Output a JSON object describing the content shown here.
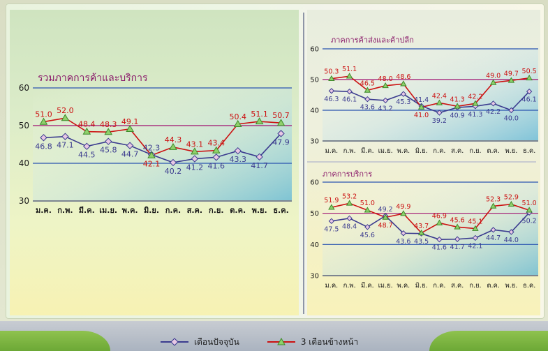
{
  "legend": {
    "current": "เดือนปัจจุบัน",
    "next3": "3 เดือนข้างหน้า"
  },
  "colors": {
    "current": "#3b3b8f",
    "next3": "#cc1111",
    "current_marker_fill": "#e8c8e4",
    "next3_marker_fill": "#8fd06b",
    "title": "#8a1a6a",
    "hline_50": "#a01070",
    "hline_blue": "#2a54b0"
  },
  "chart_data": [
    {
      "type": "line",
      "title": "รวมภาคการค้าและบริการ",
      "categories": [
        "ม.ค.",
        "ก.พ.",
        "มี.ค.",
        "เม.ย.",
        "พ.ค.",
        "มิ.ย.",
        "ก.ค.",
        "ส.ค.",
        "ก.ย.",
        "ต.ค.",
        "พ.ย.",
        "ธ.ค."
      ],
      "ylim": [
        30,
        60
      ],
      "yticks": [
        30,
        40,
        50,
        60
      ],
      "series": [
        {
          "name": "เดือนปัจจุบัน",
          "values": [
            46.8,
            47.1,
            44.5,
            45.8,
            44.7,
            42.3,
            40.2,
            41.2,
            41.6,
            43.3,
            41.7,
            47.9
          ]
        },
        {
          "name": "3 เดือนข้างหน้า",
          "values": [
            51.0,
            52.0,
            48.4,
            48.3,
            49.1,
            42.1,
            44.3,
            43.1,
            43.4,
            50.4,
            51.1,
            50.7
          ]
        }
      ]
    },
    {
      "type": "line",
      "title": "ภาคการค้าส่งและค้าปลีก",
      "categories": [
        "ม.ค.",
        "ก.พ.",
        "มี.ค.",
        "เม.ย.",
        "พ.ค.",
        "มิ.ย.",
        "ก.ค.",
        "ส.ค.",
        "ก.ย.",
        "ต.ค.",
        "พ.ย.",
        "ธ.ค."
      ],
      "ylim": [
        30,
        60
      ],
      "yticks": [
        30,
        40,
        50,
        60
      ],
      "series": [
        {
          "name": "เดือนปัจจุบัน",
          "values": [
            46.3,
            46.1,
            43.6,
            43.2,
            45.3,
            41.4,
            39.2,
            40.9,
            41.3,
            42.2,
            40.0,
            46.1
          ]
        },
        {
          "name": "3 เดือนข้างหน้า",
          "values": [
            50.3,
            51.1,
            46.5,
            48.0,
            48.6,
            41.0,
            42.4,
            41.3,
            42.2,
            49.0,
            49.7,
            50.5
          ]
        }
      ]
    },
    {
      "type": "line",
      "title": "ภาคการบริการ",
      "categories": [
        "ม.ค.",
        "ก.พ.",
        "มี.ค.",
        "เม.ย.",
        "พ.ค.",
        "มิ.ย.",
        "ก.ค.",
        "ส.ค.",
        "ก.ย.",
        "ต.ค.",
        "พ.ย.",
        "ธ.ค."
      ],
      "ylim": [
        30,
        60
      ],
      "yticks": [
        30,
        40,
        50,
        60
      ],
      "series": [
        {
          "name": "เดือนปัจจุบัน",
          "values": [
            47.5,
            48.4,
            45.6,
            49.2,
            43.6,
            43.5,
            41.6,
            41.7,
            42.1,
            44.7,
            44.0,
            50.2
          ]
        },
        {
          "name": "3 เดือนข้างหน้า",
          "values": [
            51.9,
            53.2,
            51.0,
            48.7,
            49.9,
            43.7,
            46.9,
            45.6,
            45.1,
            52.3,
            52.9,
            51.0
          ]
        }
      ]
    }
  ]
}
